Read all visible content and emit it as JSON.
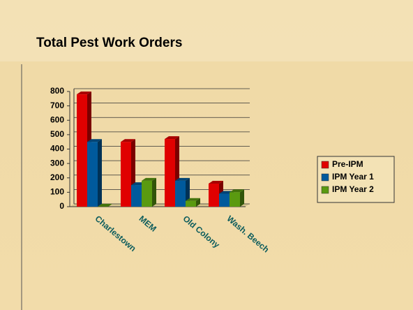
{
  "chart_data": {
    "type": "bar",
    "title": "Total Pest Work Orders",
    "categories": [
      "Charlestown",
      "MEM",
      "Old Colony",
      "Wash. Beech"
    ],
    "series": [
      {
        "name": "Pre-IPM",
        "color": "#e00000",
        "values": [
          780,
          450,
          470,
          160
        ]
      },
      {
        "name": "IPM Year 1",
        "color": "#005a9c",
        "values": [
          450,
          150,
          180,
          90
        ]
      },
      {
        "name": "IPM Year 2",
        "color": "#5a9a10",
        "values": [
          0,
          180,
          40,
          100
        ]
      }
    ],
    "ylim": [
      0,
      800
    ],
    "yticks": [
      0,
      100,
      200,
      300,
      400,
      500,
      600,
      700,
      800
    ],
    "grid": true,
    "legend": "right"
  }
}
